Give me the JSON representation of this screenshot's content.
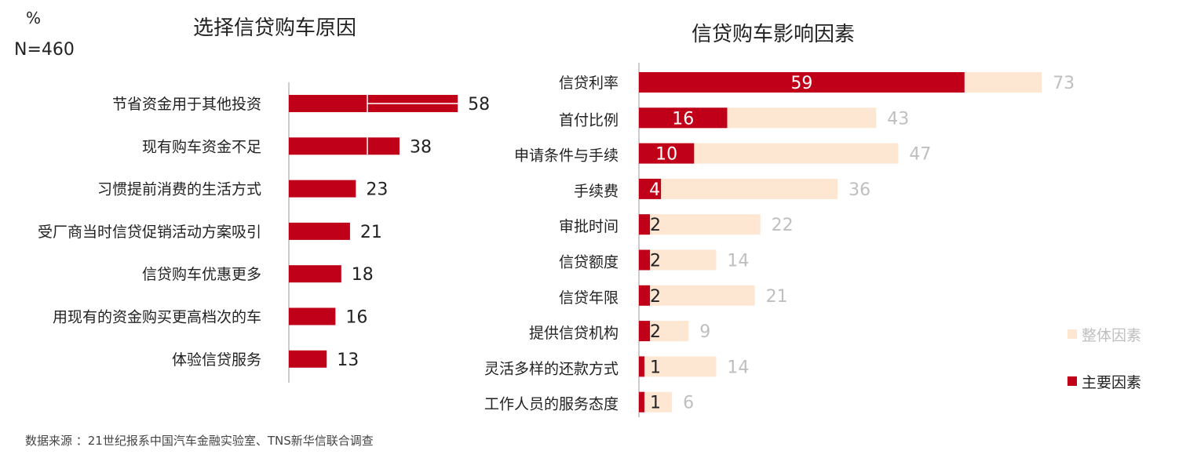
{
  "unit_label": "%",
  "sample_label": "N=460",
  "source_note": "数据来源 ：21世纪报系中国汽车金融实验室、TNS新华信联合调查",
  "colors": {
    "primary": "#c00018",
    "light": "#fde6d2",
    "light_text": "#bfbfbf",
    "text": "#222222"
  },
  "chart_data": [
    {
      "type": "bar",
      "orientation": "horizontal",
      "title": "选择信贷购车原因",
      "categories": [
        "节省资金用于其他投资",
        "现有购车资金不足",
        "习惯提前消费的生活方式",
        "受厂商当时信贷促销活动方案吸引",
        "信贷购车优惠更多",
        "用现有的资金购买更高档次的车",
        "体验信贷服务"
      ],
      "values": [
        58,
        38,
        23,
        21,
        18,
        16,
        13
      ],
      "xlim": [
        0,
        100
      ]
    },
    {
      "type": "bar",
      "orientation": "horizontal",
      "title": "信贷购车影响因素",
      "categories": [
        "信贷利率",
        "首付比例",
        "申请条件与手续",
        "手续费",
        "审批时间",
        "信贷额度",
        "信贷年限",
        "提供信贷机构",
        "灵活多样的还款方式",
        "工作人员的服务态度"
      ],
      "series": [
        {
          "name": "整体因素",
          "values": [
            73,
            43,
            47,
            36,
            22,
            14,
            21,
            9,
            14,
            6
          ]
        },
        {
          "name": "主要因素",
          "values": [
            59,
            16,
            10,
            4,
            2,
            2,
            2,
            2,
            1,
            1
          ]
        }
      ],
      "xlim": [
        0,
        100
      ],
      "legend": "bottom-right"
    }
  ]
}
